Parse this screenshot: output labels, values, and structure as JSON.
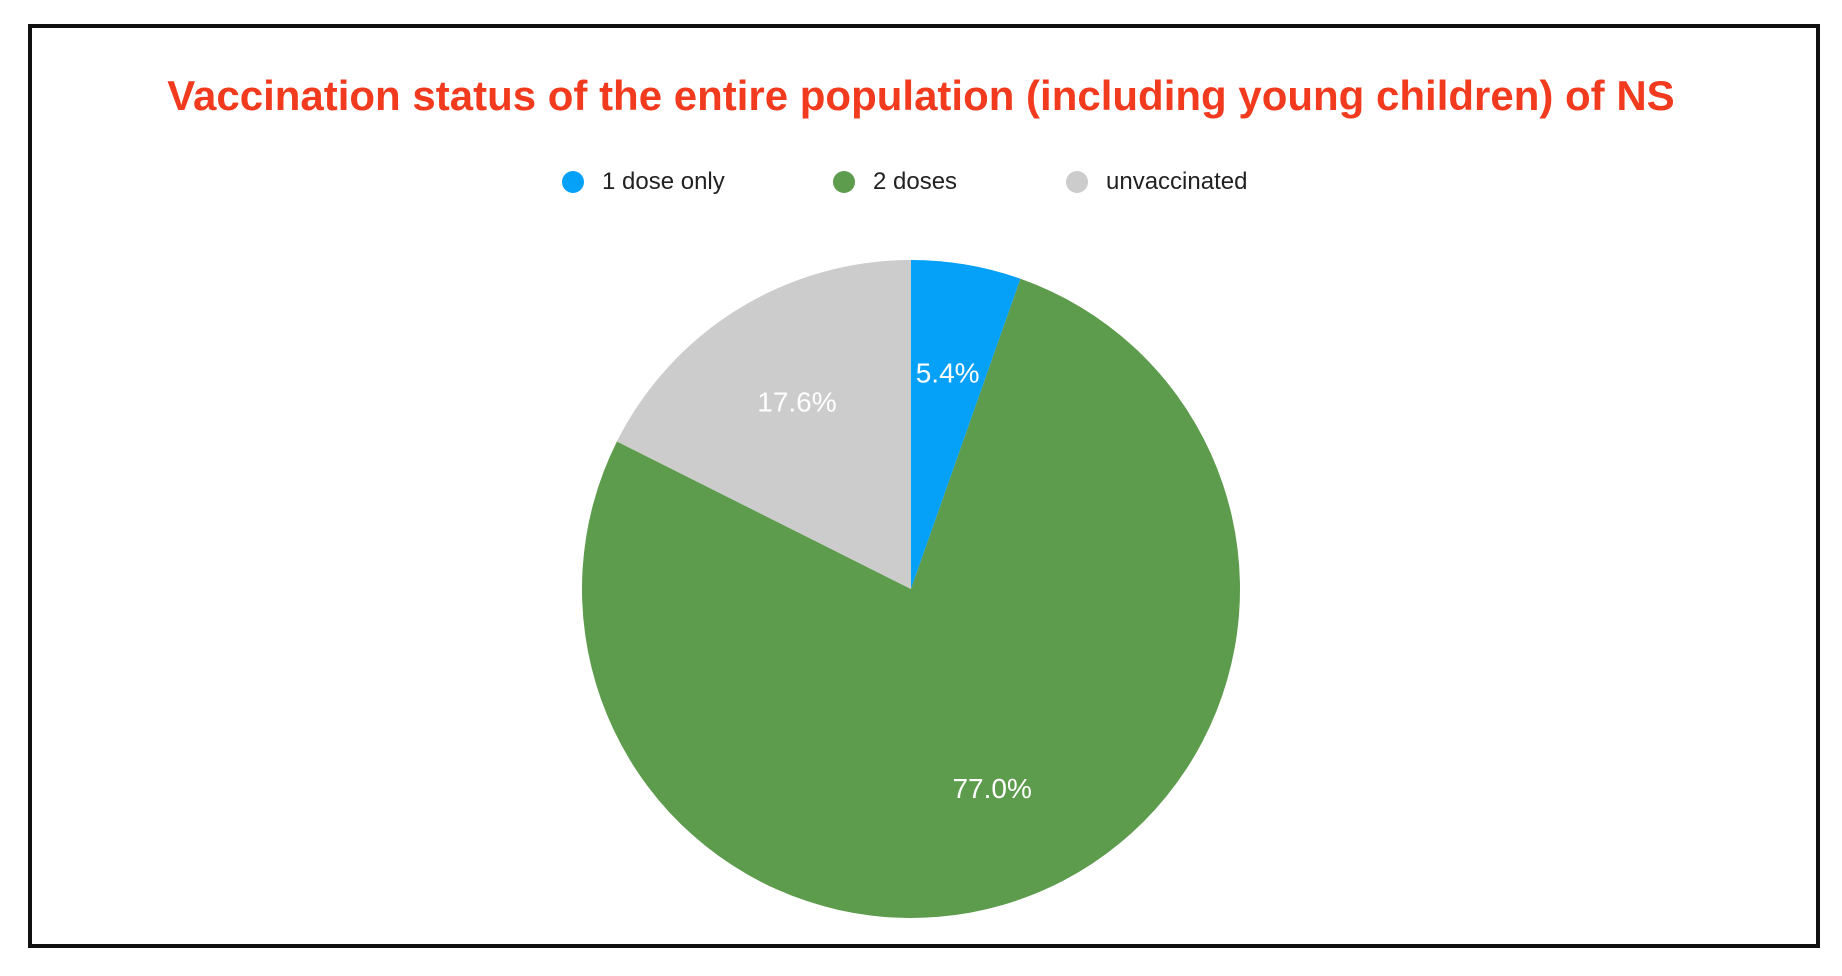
{
  "chart_data": {
    "type": "pie",
    "title": "Vaccination status of the entire population (including young children) of NS",
    "legend_position": "top",
    "slices": [
      {
        "name": "1 dose only",
        "value": 5.4,
        "label": "5.4%",
        "color": "#05a0f8"
      },
      {
        "name": "2 doses",
        "value": 77.0,
        "label": "77.0%",
        "color": "#5d9b4d"
      },
      {
        "name": "unvaccinated",
        "value": 17.6,
        "label": "17.6%",
        "color": "#cccccc"
      }
    ]
  }
}
